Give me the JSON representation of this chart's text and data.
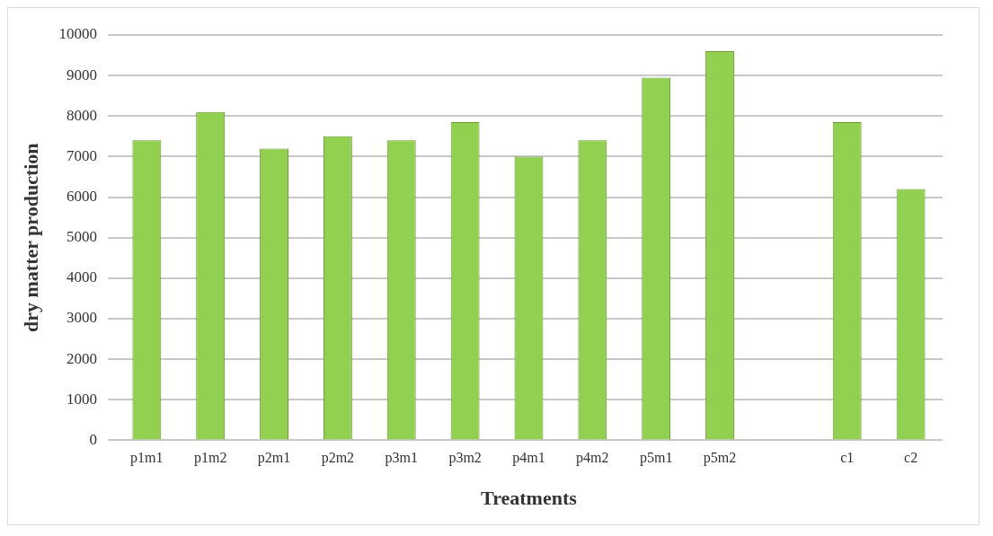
{
  "chart_data": {
    "type": "bar",
    "xlabel": "Treatments",
    "ylabel": "dry matter production",
    "categories": [
      "p1m1",
      "p1m2",
      "p2m1",
      "p2m2",
      "p3m1",
      "p3m2",
      "p4m1",
      "p4m2",
      "p5m1",
      "p5m2",
      null,
      "c1",
      "c2"
    ],
    "values": [
      7400,
      8100,
      7200,
      7500,
      7400,
      7850,
      7000,
      7400,
      8950,
      9600,
      null,
      7850,
      6200
    ],
    "color": "#92d050",
    "ylim": [
      0,
      10000
    ],
    "yticks": [
      0,
      1000,
      2000,
      3000,
      4000,
      5000,
      6000,
      7000,
      8000,
      9000,
      10000
    ],
    "grid": "y",
    "legend": false
  }
}
